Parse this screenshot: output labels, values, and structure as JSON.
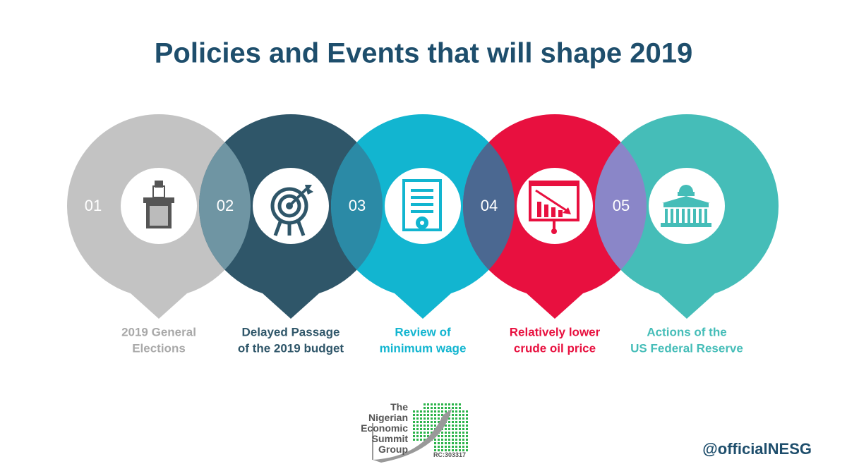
{
  "title": "Policies and Events that will shape 2019",
  "items": [
    {
      "number": "01",
      "label": [
        "2019 General",
        "Elections"
      ],
      "color": "#c3c3c3",
      "label_color": "#a9a9a9",
      "overlap_color": "#6f95a3"
    },
    {
      "number": "02",
      "label": [
        "Delayed Passage",
        "of the 2019 budget"
      ],
      "color": "#2f5669",
      "label_color": "#2f5669",
      "overlap_color": "#2b8aa6"
    },
    {
      "number": "03",
      "label": [
        "Review of",
        "minimum wage"
      ],
      "color": "#12b5d0",
      "label_color": "#12b5d0",
      "overlap_color": "#4b6891"
    },
    {
      "number": "04",
      "label": [
        "Relatively lower",
        "crude oil price"
      ],
      "color": "#e8103f",
      "label_color": "#e8103f",
      "overlap_color": "#8a86c8"
    },
    {
      "number": "05",
      "label": [
        "Actions of the",
        "US Federal Reserve"
      ],
      "color": "#45bdb8",
      "label_color": "#45bdb8"
    }
  ],
  "logo": {
    "lines": [
      "The",
      "Nigerian",
      "Economic",
      "Summit",
      "Group"
    ],
    "rc": "RC:303317"
  },
  "handle": "@officialNESG"
}
